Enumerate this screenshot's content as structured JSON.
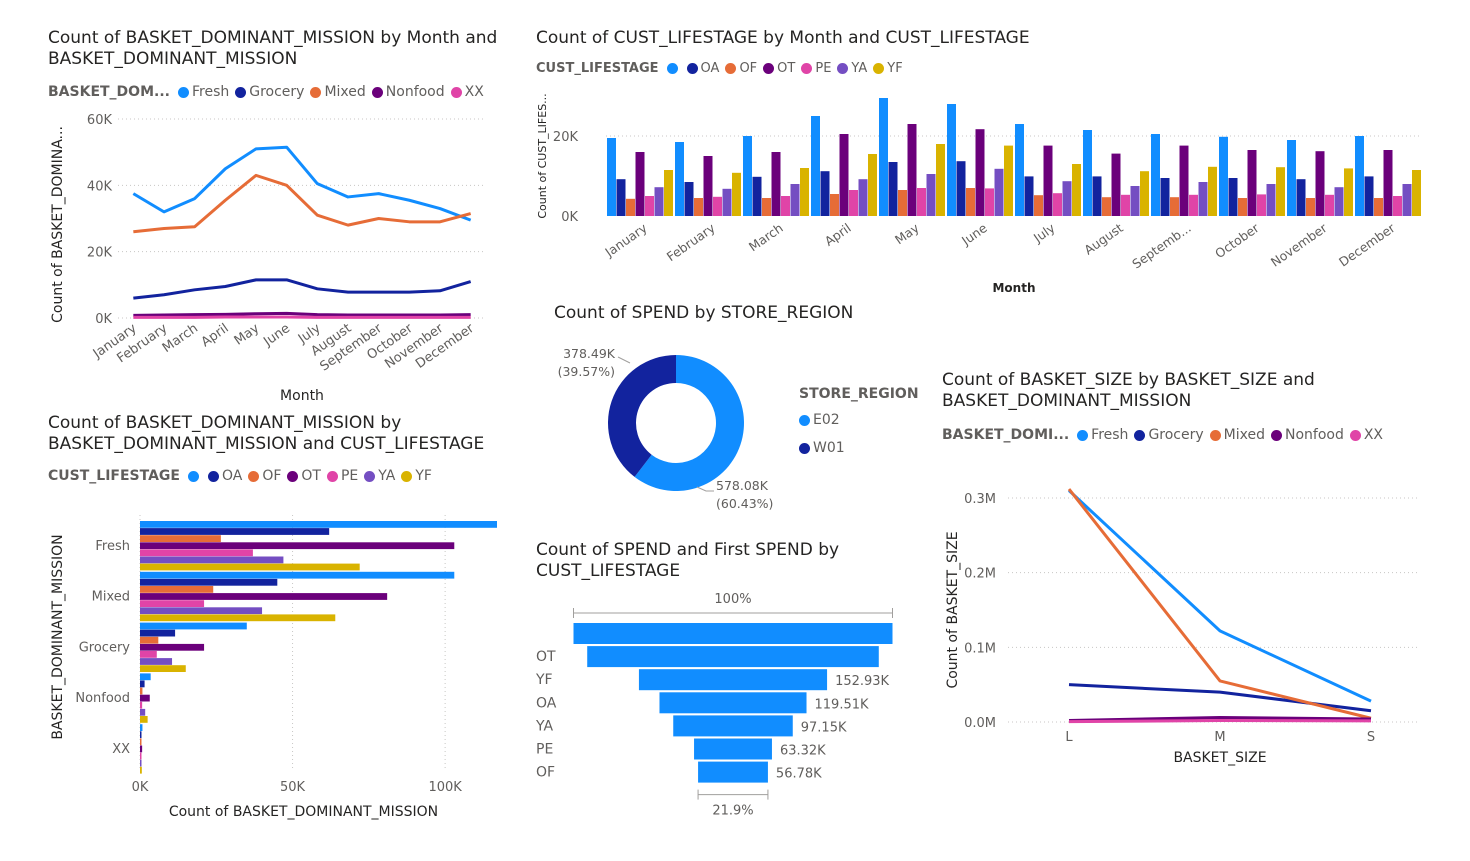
{
  "colors": {
    "Fresh": "#118DFF",
    "Grocery": "#12239E",
    "Mixed": "#E66C37",
    "Nonfood": "#6B007B",
    "XX": "#E044A7",
    "blank": "#118DFF",
    "OA": "#12239E",
    "OF": "#E66C37",
    "OT": "#6B007B",
    "PE": "#E044A7",
    "YA": "#744EC2",
    "YF": "#D9B300",
    "E02": "#118DFF",
    "W01": "#12239E",
    "funnel": "#118DFF"
  },
  "chart_data": [
    {
      "id": "mission_by_month",
      "type": "line",
      "title": "Count of BASKET_DOMINANT_MISSION by Month and BASKET_DOMINANT_MISSION",
      "title_lines": [
        "Count of BASKET_DOMINANT_MISSION by Month and",
        "BASKET_DOMINANT_MISSION"
      ],
      "legend_title": "BASKET_DOM...",
      "xlabel": "Month",
      "ylabel": "Count of BASKET_DOMINA...",
      "categories": [
        "January",
        "February",
        "March",
        "April",
        "May",
        "June",
        "July",
        "August",
        "September",
        "October",
        "November",
        "December"
      ],
      "ylim": [
        0,
        60000
      ],
      "yticks": [
        0,
        20000,
        40000,
        60000
      ],
      "ytick_labels": [
        "0K",
        "20K",
        "40K",
        "60K"
      ],
      "grid": true,
      "legend_position": "top",
      "series": [
        {
          "name": "Fresh",
          "values": [
            37500,
            32000,
            36000,
            45000,
            51000,
            51500,
            40500,
            36500,
            37500,
            35500,
            33000,
            29500
          ]
        },
        {
          "name": "Grocery",
          "values": [
            6000,
            7000,
            8500,
            9500,
            11500,
            11500,
            8800,
            7800,
            7800,
            7800,
            8200,
            11000
          ]
        },
        {
          "name": "Mixed",
          "values": [
            26000,
            27000,
            27500,
            35500,
            43000,
            40000,
            31000,
            28000,
            30000,
            29000,
            29000,
            31500
          ]
        },
        {
          "name": "Nonfood",
          "values": [
            800,
            900,
            1000,
            1100,
            1300,
            1400,
            1000,
            900,
            900,
            900,
            900,
            1000
          ]
        },
        {
          "name": "XX",
          "values": [
            200,
            200,
            200,
            300,
            300,
            300,
            200,
            200,
            200,
            200,
            200,
            200
          ]
        }
      ]
    },
    {
      "id": "lifestage_by_month",
      "type": "bar",
      "title": "Count of CUST_LIFESTAGE by Month and CUST_LIFESTAGE",
      "legend_title": "CUST_LIFESTAGE",
      "xlabel": "Month",
      "ylabel": "Count of CUST_LIFES...",
      "categories": [
        "January",
        "February",
        "March",
        "April",
        "May",
        "June",
        "July",
        "August",
        "Septemb...",
        "October",
        "November",
        "December"
      ],
      "ylim": [
        0,
        30000
      ],
      "yticks": [
        0,
        20000
      ],
      "ytick_labels": [
        "0K",
        "20K"
      ],
      "grid": true,
      "legend_position": "top",
      "series": [
        {
          "name": "",
          "key": "blank",
          "values": [
            19500,
            18500,
            20000,
            25000,
            29500,
            28000,
            23000,
            21500,
            20500,
            19800,
            19000,
            20000
          ]
        },
        {
          "name": "OA",
          "values": [
            9200,
            8500,
            9800,
            11200,
            13500,
            13700,
            9900,
            9900,
            9500,
            9500,
            9200,
            9900
          ]
        },
        {
          "name": "OF",
          "values": [
            4300,
            4500,
            4500,
            5500,
            6500,
            7000,
            5200,
            4700,
            4700,
            4500,
            4500,
            4500
          ]
        },
        {
          "name": "OT",
          "values": [
            16000,
            15000,
            16000,
            20500,
            23000,
            21700,
            17600,
            15600,
            17600,
            16500,
            16200,
            16500
          ]
        },
        {
          "name": "PE",
          "values": [
            5000,
            4800,
            5000,
            6500,
            7000,
            6900,
            5700,
            5300,
            5300,
            5400,
            5300,
            5000
          ]
        },
        {
          "name": "YA",
          "values": [
            7200,
            6800,
            8000,
            9200,
            10500,
            11800,
            8700,
            7500,
            8500,
            8000,
            7200,
            8000
          ]
        },
        {
          "name": "YF",
          "values": [
            11500,
            10800,
            12000,
            15500,
            18000,
            17600,
            13000,
            11200,
            12300,
            12200,
            11900,
            11500
          ]
        }
      ]
    },
    {
      "id": "mission_by_lifestage",
      "type": "bar",
      "orientation": "horizontal",
      "title": "Count of BASKET_DOMINANT_MISSION by BASKET_DOMINANT_MISSION and CUST_LIFESTAGE",
      "title_lines": [
        "Count of BASKET_DOMINANT_MISSION by",
        "BASKET_DOMINANT_MISSION and CUST_LIFESTAGE"
      ],
      "legend_title": "CUST_LIFESTAGE",
      "xlabel": "Count of BASKET_DOMINANT_MISSION",
      "ylabel": "BASKET_DOMINANT_MISSION",
      "categories": [
        "Fresh",
        "Mixed",
        "Grocery",
        "Nonfood",
        "XX"
      ],
      "xlim": [
        0,
        117000
      ],
      "xticks": [
        0,
        50000,
        100000
      ],
      "xtick_labels": [
        "0K",
        "50K",
        "100K"
      ],
      "grid": true,
      "legend_position": "top",
      "series": [
        {
          "name": "",
          "key": "blank",
          "values": [
            118000,
            103000,
            35000,
            3500,
            800
          ]
        },
        {
          "name": "OA",
          "values": [
            62000,
            45000,
            11500,
            1500,
            400
          ]
        },
        {
          "name": "OF",
          "values": [
            26500,
            24000,
            6000,
            800,
            200
          ]
        },
        {
          "name": "OT",
          "values": [
            103000,
            81000,
            21000,
            3200,
            700
          ]
        },
        {
          "name": "PE",
          "values": [
            37000,
            21000,
            5500,
            700,
            200
          ]
        },
        {
          "name": "YA",
          "values": [
            47000,
            40000,
            10500,
            1700,
            400
          ]
        },
        {
          "name": "YF",
          "values": [
            72000,
            64000,
            15000,
            2500,
            600
          ]
        }
      ]
    },
    {
      "id": "spend_by_region",
      "type": "pie",
      "donut": true,
      "title": "Count of SPEND by STORE_REGION",
      "legend_title": "STORE_REGION",
      "legend_position": "right",
      "categories": [
        "E02",
        "W01"
      ],
      "values": [
        578080,
        378490
      ],
      "labels": [
        {
          "value": "578.08K",
          "pct": "(60.43%)"
        },
        {
          "value": "378.49K",
          "pct": "(39.57%)"
        }
      ]
    },
    {
      "id": "spend_funnel",
      "type": "bar",
      "subtype": "funnel",
      "title": "Count of SPEND and First SPEND by CUST_LIFESTAGE",
      "title_lines": [
        "Count of SPEND and First SPEND by",
        "CUST_LIFESTAGE"
      ],
      "top_label": "100%",
      "bottom_label": "21.9%",
      "categories": [
        "",
        "OT",
        "YF",
        "OA",
        "YA",
        "PE",
        "OF"
      ],
      "values": [
        259300,
        237000,
        152930,
        119510,
        97150,
        63320,
        56780
      ],
      "value_labels": [
        "",
        "",
        "152.93K",
        "119.51K",
        "97.15K",
        "63.32K",
        "56.78K"
      ]
    },
    {
      "id": "size_by_mission",
      "type": "line",
      "title": "Count of BASKET_SIZE by BASKET_SIZE and BASKET_DOMINANT_MISSION",
      "title_lines": [
        "Count of BASKET_SIZE by BASKET_SIZE and",
        "BASKET_DOMINANT_MISSION"
      ],
      "legend_title": "BASKET_DOMI...",
      "xlabel": "BASKET_SIZE",
      "ylabel": "Count of BASKET_SIZE",
      "categories": [
        "L",
        "M",
        "S"
      ],
      "ylim": [
        0,
        300000
      ],
      "yticks": [
        0,
        100000,
        200000,
        300000
      ],
      "ytick_labels": [
        "0.0M",
        "0.1M",
        "0.2M",
        "0.3M"
      ],
      "grid": true,
      "legend_position": "top",
      "series": [
        {
          "name": "Fresh",
          "values": [
            310000,
            122000,
            28000
          ]
        },
        {
          "name": "Grocery",
          "values": [
            50000,
            40000,
            15000
          ]
        },
        {
          "name": "Mixed",
          "values": [
            312000,
            55000,
            5000
          ]
        },
        {
          "name": "Nonfood",
          "values": [
            2000,
            6000,
            4000
          ]
        },
        {
          "name": "XX",
          "values": [
            500,
            2000,
            1500
          ]
        }
      ]
    }
  ]
}
